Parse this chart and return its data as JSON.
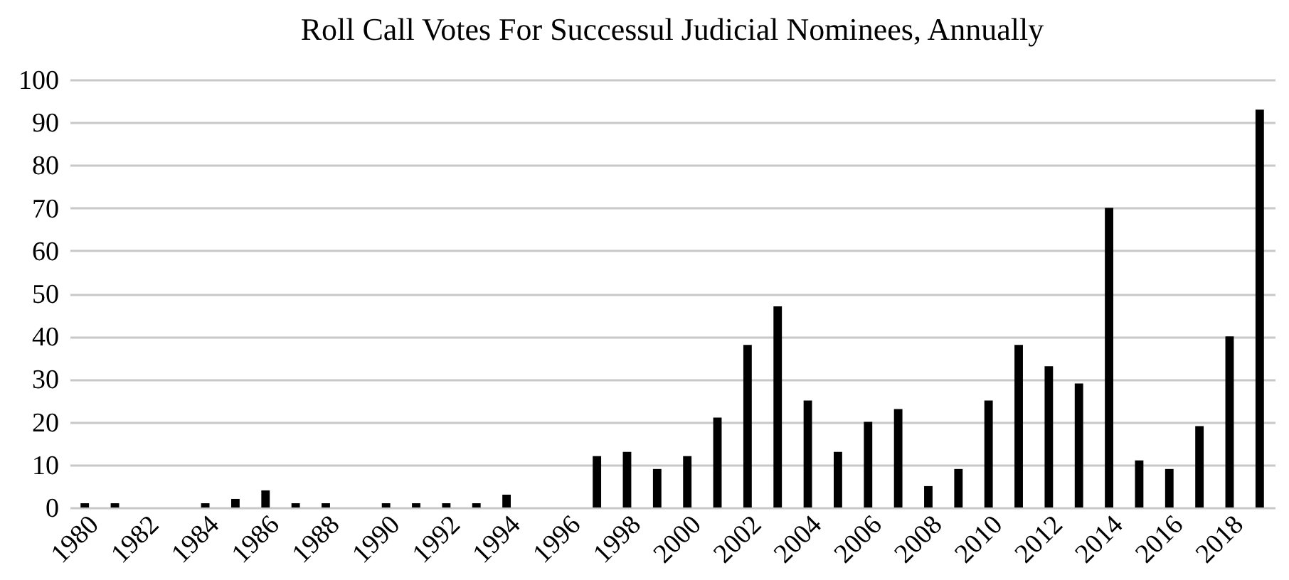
{
  "chart_data": {
    "type": "bar",
    "title": "Roll Call Votes For Successul Judicial Nominees, Annually",
    "categories": [
      "1980",
      null,
      "1982",
      null,
      "1984",
      null,
      "1986",
      null,
      "1988",
      null,
      "1990",
      null,
      "1992",
      null,
      "1994",
      null,
      "1996",
      null,
      "1998",
      null,
      "2000",
      null,
      "2002",
      null,
      "2004",
      null,
      "2006",
      null,
      "2008",
      null,
      "2010",
      null,
      "2012",
      null,
      "2014",
      null,
      "2016",
      null,
      "2018",
      null
    ],
    "values": [
      1,
      1,
      0,
      0,
      1,
      2,
      4,
      1,
      1,
      0,
      1,
      1,
      1,
      1,
      3,
      0,
      0,
      12,
      13,
      9,
      12,
      21,
      38,
      47,
      25,
      13,
      20,
      23,
      5,
      9,
      25,
      38,
      33,
      29,
      70,
      11,
      9,
      19,
      40,
      93
    ],
    "color": "#000000",
    "ylim": [
      0,
      100
    ],
    "yticks": [
      0,
      10,
      20,
      30,
      40,
      50,
      60,
      70,
      80,
      90,
      100
    ],
    "grid": "y"
  }
}
